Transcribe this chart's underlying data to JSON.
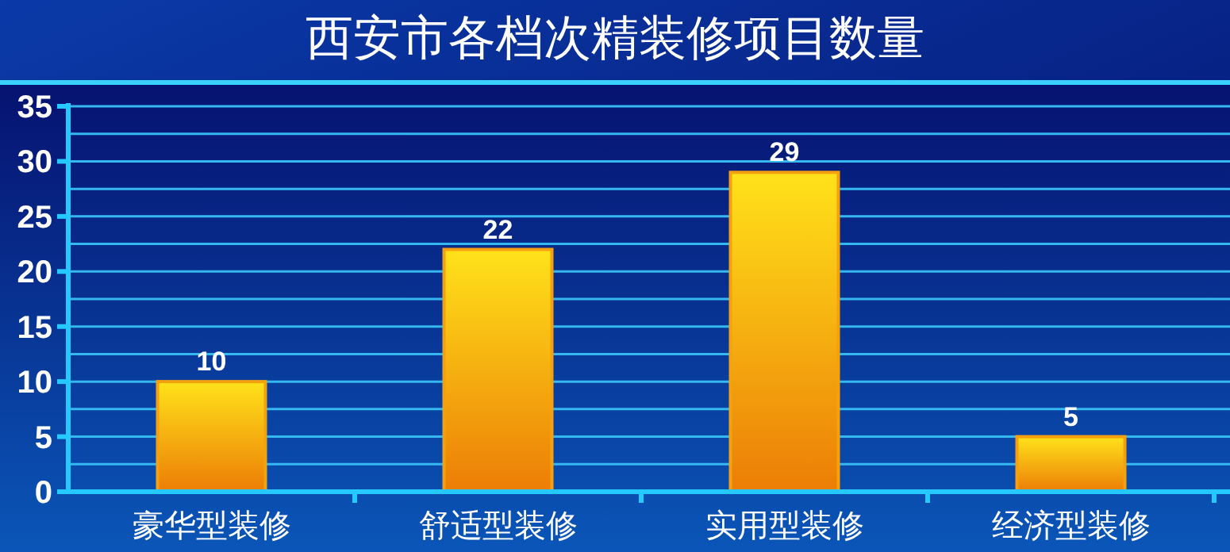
{
  "chart_data": {
    "type": "bar",
    "title": "西安市各档次精装修项目数量",
    "categories": [
      "豪华型装修",
      "舒适型装修",
      "实用型装修",
      "经济型装修"
    ],
    "values": [
      10,
      22,
      29,
      5
    ],
    "color": "#f5a00f",
    "data_labels": true,
    "grid": "y",
    "ylim": [
      0,
      35
    ],
    "yticks": [
      0,
      {
        "value": 2.5,
        "label": null
      },
      5,
      {
        "value": 7.5,
        "label": null
      },
      10,
      {
        "value": 12.5,
        "label": null
      },
      15,
      {
        "value": 17.5,
        "label": null
      },
      20,
      {
        "value": 22.5,
        "label": null
      },
      25,
      {
        "value": 27.5,
        "label": null
      },
      30,
      {
        "value": 32.5,
        "label": null
      },
      35
    ]
  }
}
